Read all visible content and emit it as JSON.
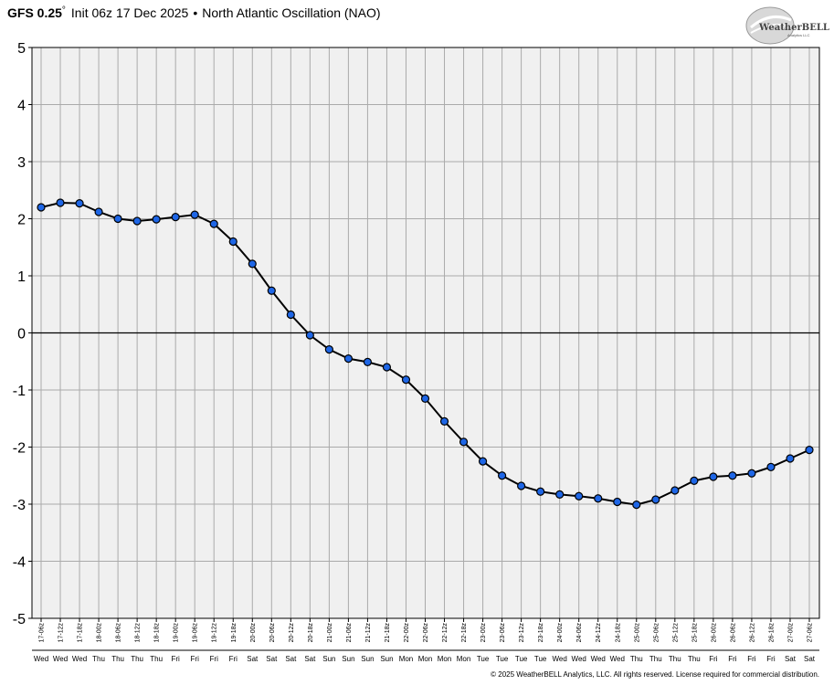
{
  "header": {
    "model": "GFS 0.25",
    "degree": "°",
    "init": "Init 06z 17 Dec 2025",
    "bullet": "•",
    "index_name": "North Atlantic Oscillation (NAO)"
  },
  "logo": {
    "text": "WeatherBELL",
    "subtext": "Analytics LLC"
  },
  "footer": {
    "copyright": "© 2025 WeatherBELL Analytics, LLC. All rights reserved. License required for commercial distribution."
  },
  "colors": {
    "line": "#000000",
    "marker_fill": "#1e66e6",
    "grid": "#aaaaaa",
    "plot_bg": "#f0f0f0",
    "zero_line": "#000000"
  },
  "chart_data": {
    "type": "line",
    "ylim": [
      -5,
      5
    ],
    "yticks": [
      "5",
      "4",
      "3",
      "2",
      "1",
      "0",
      "-1",
      "-2",
      "-3",
      "-4",
      "-5"
    ],
    "grid": true,
    "categories": [
      "17-06z",
      "17-12z",
      "17-18z",
      "18-00z",
      "18-06z",
      "18-12z",
      "18-18z",
      "19-00z",
      "19-06z",
      "19-12z",
      "19-18z",
      "20-00z",
      "20-06z",
      "20-12z",
      "20-18z",
      "21-00z",
      "21-06z",
      "21-12z",
      "21-18z",
      "22-00z",
      "22-06z",
      "22-12z",
      "22-18z",
      "23-00z",
      "23-06z",
      "23-12z",
      "23-18z",
      "24-00z",
      "24-06z",
      "24-12z",
      "24-18z",
      "25-00z",
      "25-06z",
      "25-12z",
      "25-18z",
      "26-00z",
      "26-06z",
      "26-12z",
      "26-18z",
      "27-00z",
      "27-06z"
    ],
    "days": [
      "Wed",
      "Wed",
      "Wed",
      "Thu",
      "Thu",
      "Thu",
      "Thu",
      "Fri",
      "Fri",
      "Fri",
      "Fri",
      "Sat",
      "Sat",
      "Sat",
      "Sat",
      "Sun",
      "Sun",
      "Sun",
      "Sun",
      "Mon",
      "Mon",
      "Mon",
      "Mon",
      "Tue",
      "Tue",
      "Tue",
      "Tue",
      "Wed",
      "Wed",
      "Wed",
      "Wed",
      "Thu",
      "Thu",
      "Thu",
      "Thu",
      "Fri",
      "Fri",
      "Fri",
      "Fri",
      "Sat",
      "Sat"
    ],
    "values": [
      2.2,
      2.28,
      2.27,
      2.12,
      2.0,
      1.96,
      1.99,
      2.03,
      2.07,
      1.91,
      1.6,
      1.21,
      0.74,
      0.32,
      -0.04,
      -0.29,
      -0.45,
      -0.51,
      -0.6,
      -0.82,
      -1.15,
      -1.55,
      -1.91,
      -2.25,
      -2.5,
      -2.68,
      -2.78,
      -2.83,
      -2.86,
      -2.9,
      -2.96,
      -3.01,
      -2.92,
      -2.76,
      -2.59,
      -2.52,
      -2.5,
      -2.46,
      -2.35,
      -2.2,
      -2.05
    ]
  }
}
